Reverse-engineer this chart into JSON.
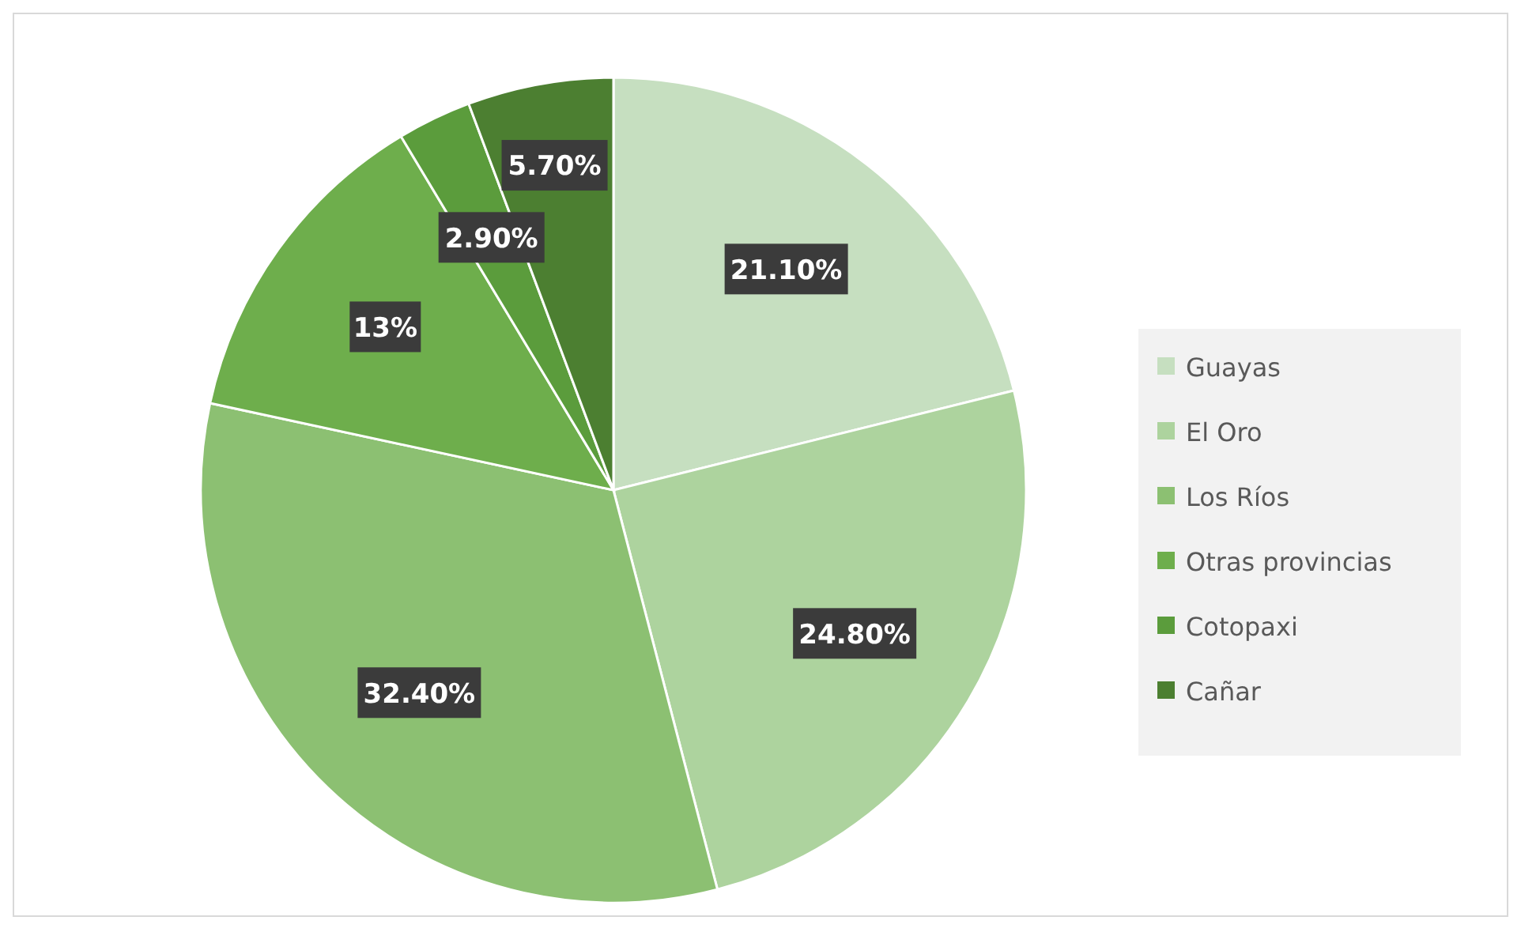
{
  "chart_data": {
    "type": "pie",
    "categories": [
      "Guayas",
      "El Oro",
      "Los Ríos",
      "Otras provincias",
      "Cotopaxi",
      "Cañar"
    ],
    "values": [
      21.1,
      24.8,
      32.4,
      13,
      2.9,
      5.7
    ],
    "value_labels": [
      "21.10%",
      "24.80%",
      "32.40%",
      "13%",
      "2.90%",
      "5.70%"
    ],
    "colors": [
      "#c6dfc0",
      "#add39e",
      "#8cc072",
      "#6eae4c",
      "#5b9c3c",
      "#4c7f31"
    ],
    "legend": "right"
  }
}
